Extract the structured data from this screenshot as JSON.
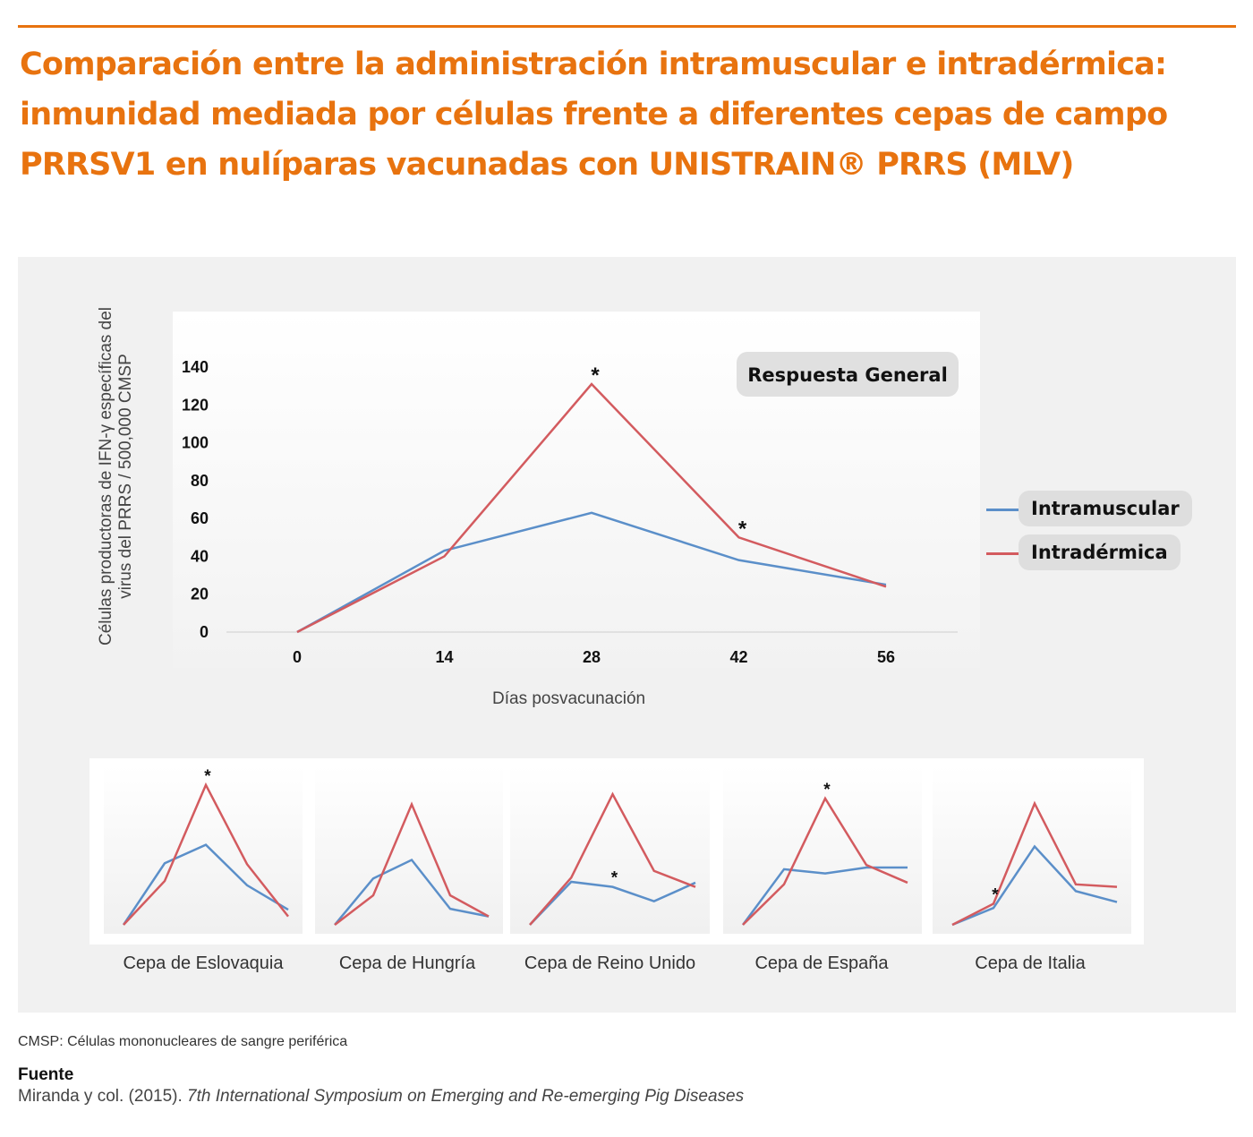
{
  "title": {
    "line1": "Comparación entre la administración intramuscular e intradérmica:",
    "line2": "inmunidad mediada por células frente a diferentes cepas de campo",
    "line3": "PRRSV1 en nulíparas vacunadas con UNISTRAIN® PRRS (MLV)"
  },
  "colors": {
    "accent": "#e8730f",
    "intramuscular": "#5b8fc9",
    "intradermica": "#d35b5f",
    "panel": "#f1f1f1"
  },
  "chart_data": [
    {
      "type": "line",
      "title": "Respuesta General",
      "xlabel": "Días posvacunación",
      "ylabel": "Células productoras de IFN-γ específicas del virus del PRRS / 500,000 CMSP",
      "x": [
        0,
        14,
        28,
        42,
        56
      ],
      "ylim": [
        0,
        140
      ],
      "yticks": [
        0,
        20,
        40,
        60,
        80,
        100,
        120,
        140
      ],
      "legend": "right",
      "series": [
        {
          "name": "Intramuscular",
          "values": [
            0,
            43,
            63,
            38,
            25
          ]
        },
        {
          "name": "Intradérmica",
          "values": [
            0,
            40,
            131,
            50,
            24
          ]
        }
      ],
      "annotations": [
        {
          "x": 28,
          "series": "Intradérmica",
          "text": "*"
        },
        {
          "x": 42,
          "series": "Intradérmica",
          "text": "*"
        }
      ]
    },
    {
      "type": "line",
      "title": "Cepa de Eslovaquia",
      "series": [
        {
          "name": "Intramuscular",
          "values": [
            0,
            73,
            95,
            47,
            18
          ]
        },
        {
          "name": "Intradérmica",
          "values": [
            0,
            52,
            166,
            72,
            10
          ]
        }
      ],
      "annotations": [
        {
          "index": 2,
          "series": "Intradérmica",
          "text": "*"
        }
      ]
    },
    {
      "type": "line",
      "title": "Cepa de Hungría",
      "series": [
        {
          "name": "Intramuscular",
          "values": [
            0,
            55,
            77,
            19,
            10
          ]
        },
        {
          "name": "Intradérmica",
          "values": [
            0,
            35,
            143,
            35,
            10
          ]
        }
      ],
      "annotations": []
    },
    {
      "type": "line",
      "title": "Cepa de Reino Unido",
      "series": [
        {
          "name": "Intramuscular",
          "values": [
            0,
            51,
            45,
            28,
            50
          ]
        },
        {
          "name": "Intradérmica",
          "values": [
            0,
            56,
            155,
            64,
            45
          ]
        }
      ],
      "annotations": [
        {
          "index": 2,
          "series": "Intramuscular",
          "text": "*"
        }
      ]
    },
    {
      "type": "line",
      "title": "Cepa de España",
      "series": [
        {
          "name": "Intramuscular",
          "values": [
            0,
            66,
            61,
            68,
            68
          ]
        },
        {
          "name": "Intradérmica",
          "values": [
            0,
            48,
            150,
            71,
            50
          ]
        }
      ],
      "annotations": [
        {
          "index": 2,
          "series": "Intradérmica",
          "text": "*"
        }
      ]
    },
    {
      "type": "line",
      "title": "Cepa de Italia",
      "series": [
        {
          "name": "Intramuscular",
          "values": [
            0,
            20,
            93,
            40,
            27
          ]
        },
        {
          "name": "Intradérmica",
          "values": [
            0,
            25,
            144,
            48,
            45
          ]
        }
      ],
      "annotations": [
        {
          "index": 1,
          "series": "Intradérmica",
          "text": "*"
        }
      ]
    }
  ],
  "footnote": "CMSP: Células mononucleares de sangre periférica",
  "source": {
    "heading": "Fuente",
    "text": "Miranda y col. (2015). ",
    "italic": "7th International Symposium on Emerging and Re-emerging Pig Diseases"
  }
}
